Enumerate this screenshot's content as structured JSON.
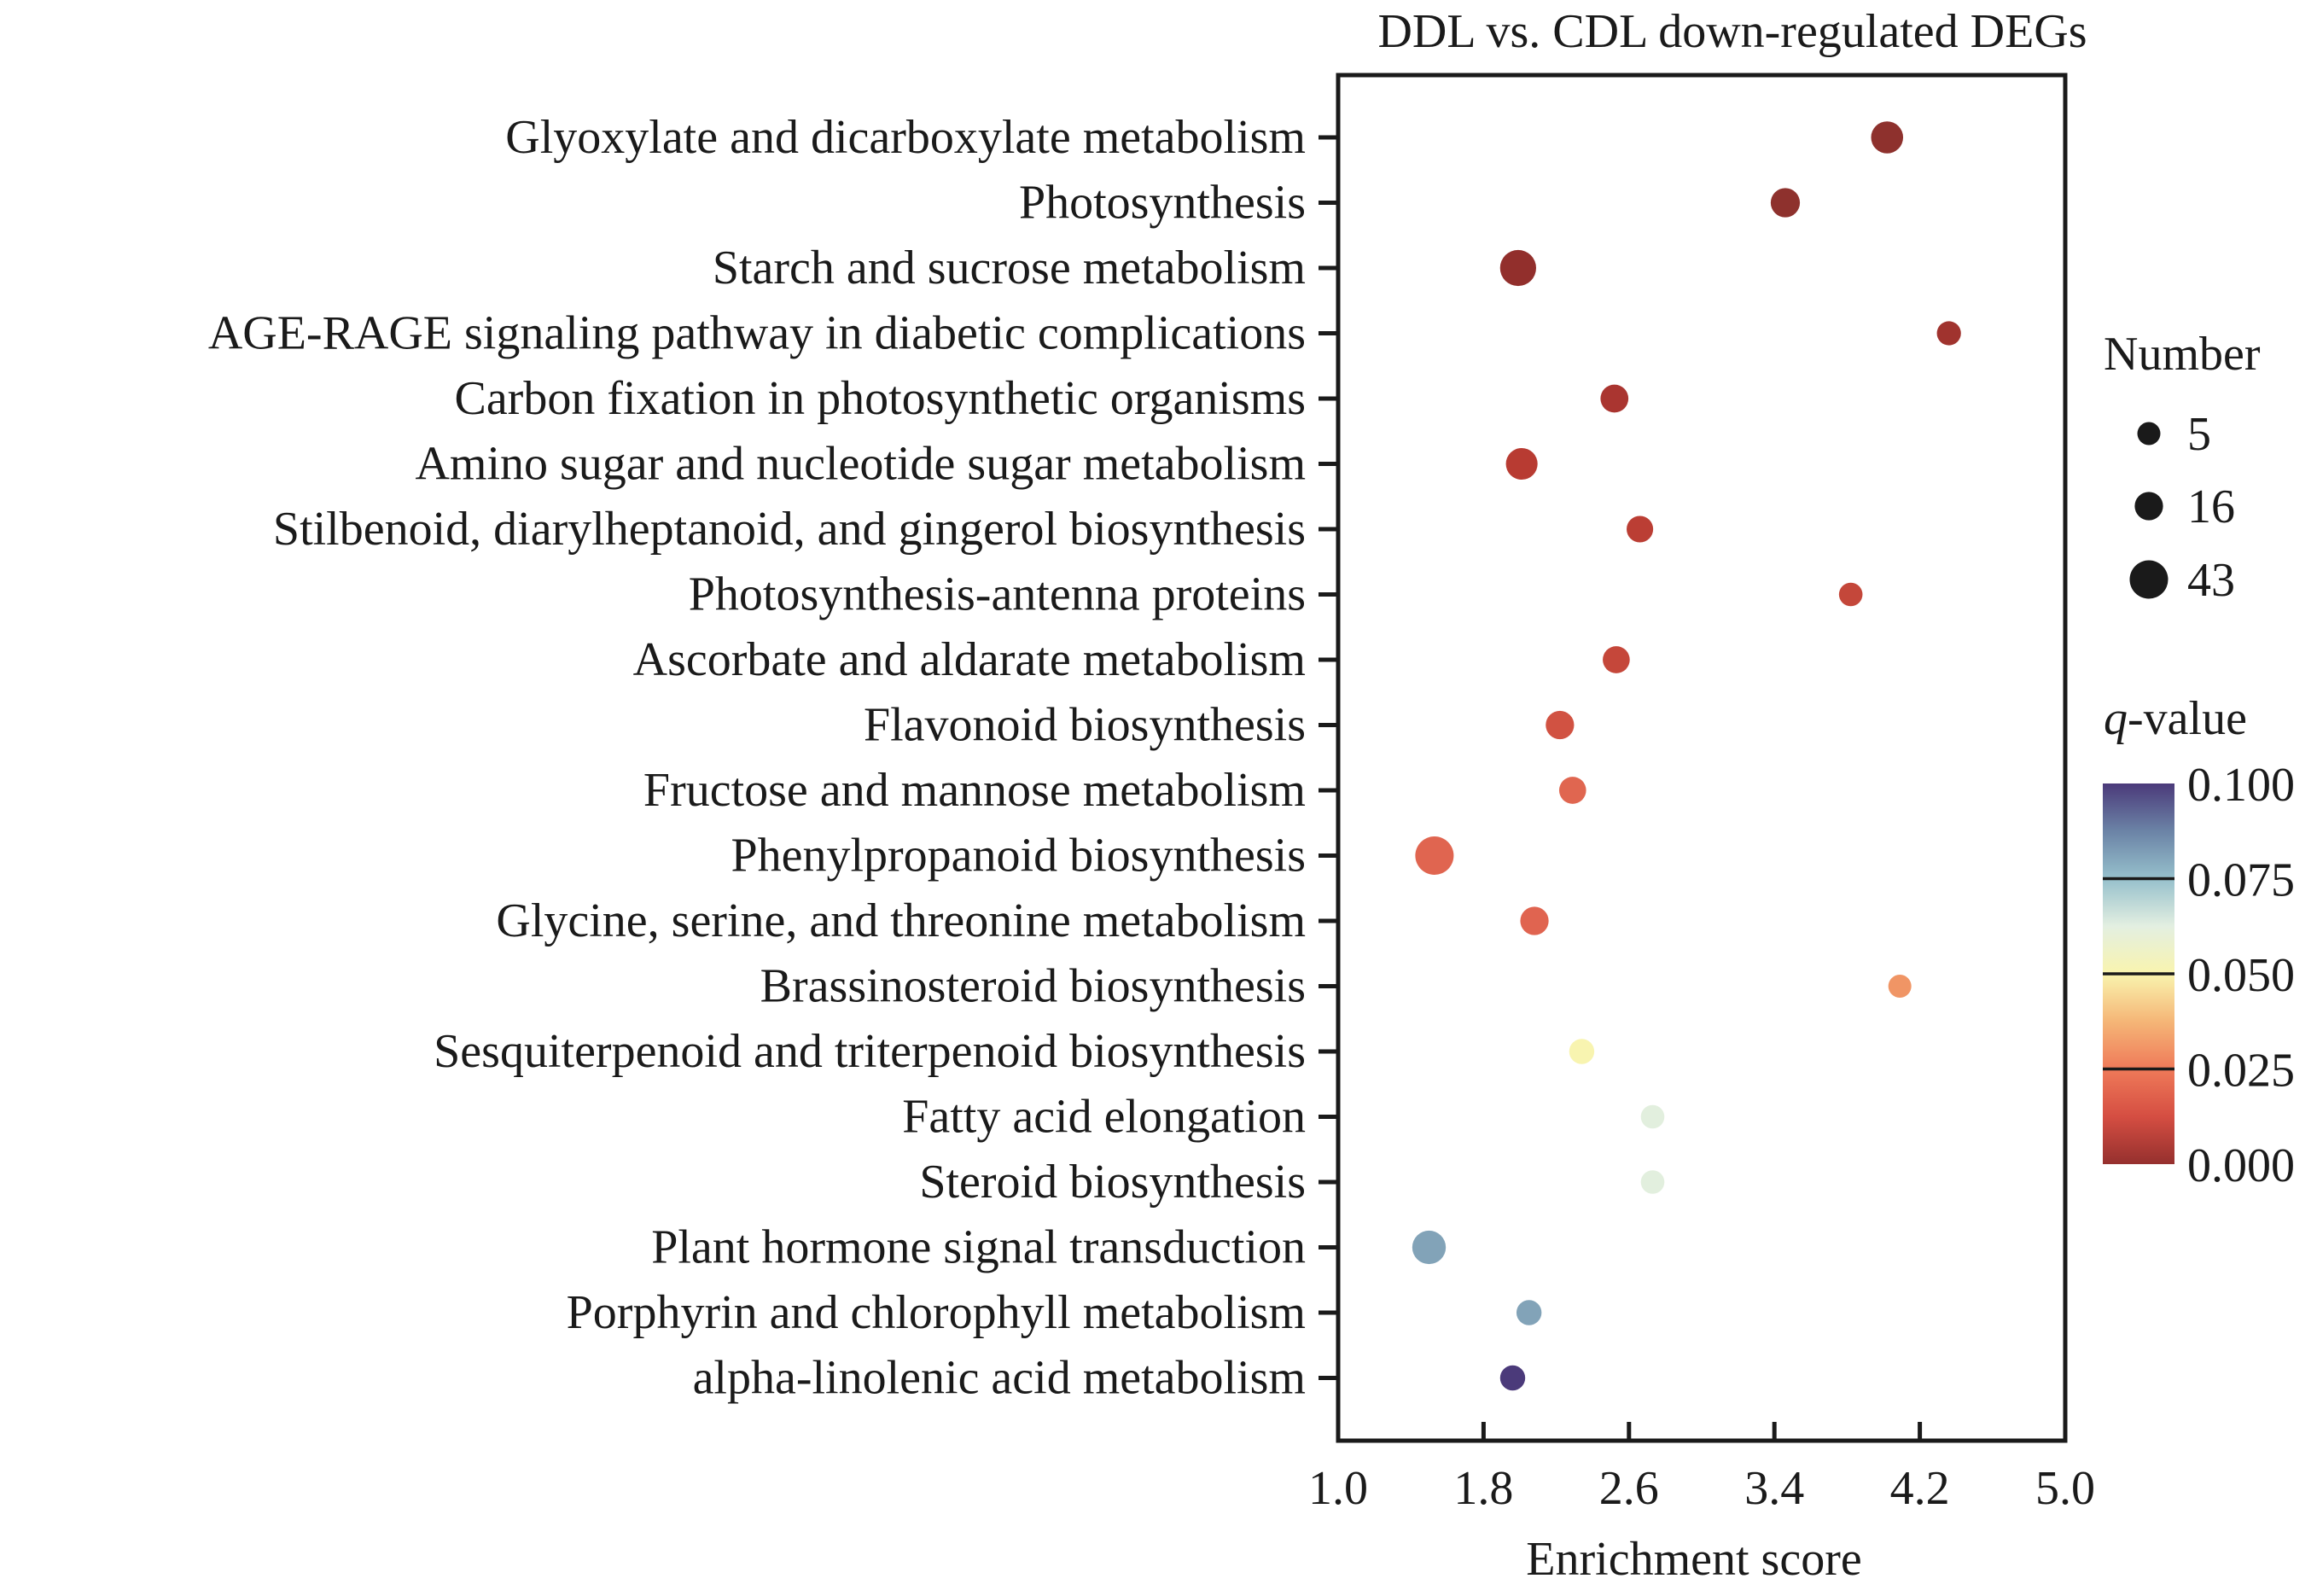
{
  "chart_data": {
    "type": "scatter",
    "subtype": "bubble",
    "title": "DDL vs. CDL down-regulated DEGs",
    "xlabel": "Enrichment score",
    "ylabel": "",
    "xlim": [
      1.0,
      5.0
    ],
    "xticks": [
      "1.0",
      "1.8",
      "2.6",
      "3.4",
      "4.2",
      "5.0"
    ],
    "grid": false,
    "categories": [
      "Glyoxylate and dicarboxylate metabolism",
      "Photosynthesis",
      "Starch and sucrose metabolism",
      "AGE-RAGE signaling pathway in diabetic complications",
      "Carbon fixation in photosynthetic organisms",
      "Amino sugar and nucleotide sugar metabolism",
      "Stilbenoid, diarylheptanoid, and gingerol biosynthesis",
      "Photosynthesis-antenna proteins",
      "Ascorbate and aldarate metabolism",
      "Flavonoid biosynthesis",
      "Fructose and mannose metabolism",
      "Phenylpropanoid biosynthesis",
      "Glycine, serine, and threonine metabolism",
      "Brassinosteroid biosynthesis",
      "Sesquiterpenoid and triterpenoid biosynthesis",
      "Fatty acid elongation",
      "Steroid biosynthesis",
      "Plant hormone signal transduction",
      "Porphyrin and chlorophyll metabolism",
      "alpha-linolenic acid metabolism"
    ],
    "points": [
      {
        "category": "Glyoxylate and dicarboxylate metabolism",
        "x": 4.02,
        "number": 25,
        "q_value": 0.001,
        "color": "#8E312D"
      },
      {
        "category": "Photosynthesis",
        "x": 3.46,
        "number": 18,
        "q_value": 0.001,
        "color": "#8E312D"
      },
      {
        "category": "Starch and sucrose metabolism",
        "x": 1.99,
        "number": 36,
        "q_value": 0.001,
        "color": "#922F2C"
      },
      {
        "category": "AGE-RAGE signaling pathway in diabetic complications",
        "x": 4.36,
        "number": 7,
        "q_value": 0.003,
        "color": "#A0332E"
      },
      {
        "category": "Carbon fixation in photosynthetic organisms",
        "x": 2.52,
        "number": 15,
        "q_value": 0.004,
        "color": "#AA3530"
      },
      {
        "category": "Amino sugar and nucleotide sugar metabolism",
        "x": 2.01,
        "number": 24,
        "q_value": 0.006,
        "color": "#B83B32"
      },
      {
        "category": "Stilbenoid, diarylheptanoid, and gingerol biosynthesis",
        "x": 2.66,
        "number": 12,
        "q_value": 0.007,
        "color": "#BB3E34"
      },
      {
        "category": "Photosynthesis-antenna proteins",
        "x": 3.82,
        "number": 6,
        "q_value": 0.009,
        "color": "#C4473A"
      },
      {
        "category": "Ascorbate and aldarate metabolism",
        "x": 2.53,
        "number": 13,
        "q_value": 0.009,
        "color": "#C5473A"
      },
      {
        "category": "Flavonoid biosynthesis",
        "x": 2.22,
        "number": 16,
        "q_value": 0.012,
        "color": "#D15242"
      },
      {
        "category": "Fructose and mannose metabolism",
        "x": 2.29,
        "number": 13,
        "q_value": 0.016,
        "color": "#E06650"
      },
      {
        "category": "Phenylpropanoid biosynthesis",
        "x": 1.53,
        "number": 43,
        "q_value": 0.016,
        "color": "#E06550"
      },
      {
        "category": "Glycine, serine, and threonine metabolism",
        "x": 2.08,
        "number": 16,
        "q_value": 0.016,
        "color": "#E06450"
      },
      {
        "category": "Brassinosteroid biosynthesis",
        "x": 4.09,
        "number": 5,
        "q_value": 0.028,
        "color": "#F09565"
      },
      {
        "category": "Sesquiterpenoid and triterpenoid biosynthesis",
        "x": 2.34,
        "number": 9,
        "q_value": 0.05,
        "color": "#F8F4B0"
      },
      {
        "category": "Fatty acid elongation",
        "x": 2.73,
        "number": 6,
        "q_value": 0.06,
        "color": "#E2EFDE"
      },
      {
        "category": "Steroid biosynthesis",
        "x": 2.73,
        "number": 6,
        "q_value": 0.06,
        "color": "#E2EFDE"
      },
      {
        "category": "Plant hormone signal transduction",
        "x": 1.5,
        "number": 29,
        "q_value": 0.08,
        "color": "#82A3B8"
      },
      {
        "category": "Porphyrin and chlorophyll metabolism",
        "x": 2.05,
        "number": 9,
        "q_value": 0.08,
        "color": "#82A3B8"
      },
      {
        "category": "alpha-linolenic acid metabolism",
        "x": 1.96,
        "number": 9,
        "q_value": 0.1,
        "color": "#4B3A7A"
      }
    ],
    "size_legend": {
      "title": "Number",
      "entries": [
        {
          "label": "5",
          "value": 5
        },
        {
          "label": "16",
          "value": 16
        },
        {
          "label": "43",
          "value": 43
        }
      ],
      "color": "#1a1a1a",
      "placement": "right"
    },
    "color_legend": {
      "title_italic": "q",
      "title_rest": "-value",
      "range": [
        0.0,
        0.1
      ],
      "ticks": [
        "0.100",
        "0.075",
        "0.050",
        "0.025",
        "0.000"
      ],
      "gradient_stops": [
        {
          "value": 0.0,
          "color": "#95302E"
        },
        {
          "value": 0.0125,
          "color": "#D54E42"
        },
        {
          "value": 0.025,
          "color": "#EF7A59"
        },
        {
          "value": 0.0375,
          "color": "#F5B677"
        },
        {
          "value": 0.05,
          "color": "#F9F4AE"
        },
        {
          "value": 0.0625,
          "color": "#E3EFE1"
        },
        {
          "value": 0.075,
          "color": "#96C0CC"
        },
        {
          "value": 0.0875,
          "color": "#6B83A6"
        },
        {
          "value": 0.1,
          "color": "#4B3A7A"
        }
      ],
      "placement": "right"
    }
  }
}
